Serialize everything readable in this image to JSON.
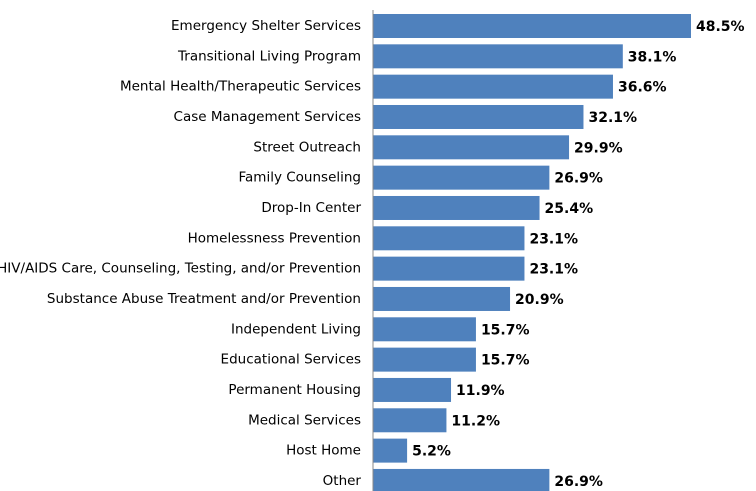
{
  "chart_data": {
    "type": "barh",
    "color": "#4f81bd",
    "categories": [
      "Emergency Shelter Services",
      "Transitional Living Program",
      "Mental Health/Therapeutic Services",
      "Case Management Services",
      "Street Outreach",
      "Family Counseling",
      "Drop-In Center",
      "Homelessness Prevention",
      "HIV/AIDS Care, Counseling, Testing, and/or Prevention",
      "Substance Abuse Treatment and/or Prevention",
      "Independent Living",
      "Educational Services",
      "Permanent Housing",
      "Medical Services",
      "Host Home",
      "Other"
    ],
    "values": [
      48.5,
      38.1,
      36.6,
      32.1,
      29.9,
      26.9,
      25.4,
      23.1,
      23.1,
      20.9,
      15.7,
      15.7,
      11.9,
      11.2,
      5.2,
      26.9
    ],
    "value_labels": [
      "48.5%",
      "38.1%",
      "36.6%",
      "32.1%",
      "29.9%",
      "26.9%",
      "25.4%",
      "23.1%",
      "23.1%",
      "20.9%",
      "15.7%",
      "15.7%",
      "11.9%",
      "11.2%",
      "5.2%",
      "26.9%"
    ]
  }
}
